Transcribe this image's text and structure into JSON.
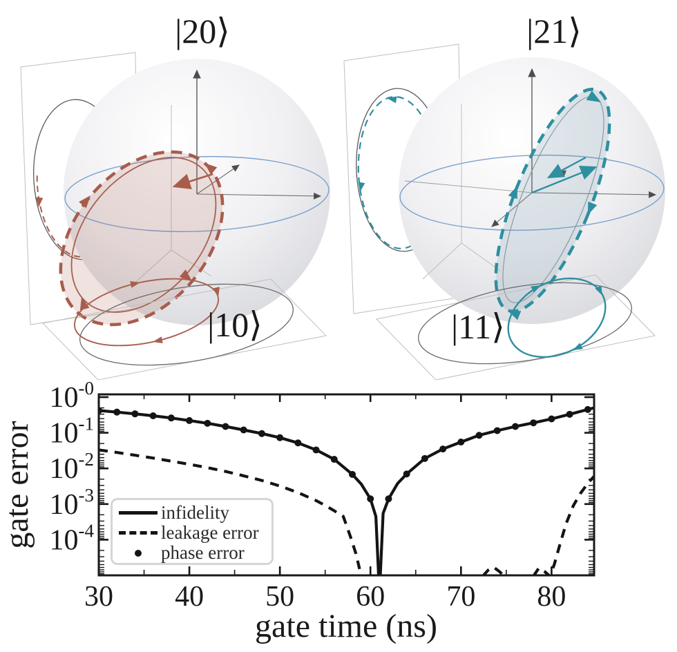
{
  "figure": {
    "bloch_left": {
      "top_label": "|20⟩",
      "bottom_label": "|10⟩",
      "trajectory_color": "#a85c4c",
      "trajectory_fill": "rgba(168,92,76,0.18)"
    },
    "bloch_right": {
      "top_label": "|21⟩",
      "bottom_label": "|11⟩",
      "trajectory_color": "#2e8fa0",
      "trajectory_fill": "rgba(115,150,168,0.20)"
    },
    "equator_color": "#7aa1cc",
    "sphere_color": "#d7d8dc",
    "axis_color": "#4d4d4d"
  },
  "chart_data": {
    "type": "line",
    "title": "",
    "xlabel": "gate time (ns)",
    "ylabel": "gate error",
    "xlim": [
      30,
      84.7
    ],
    "ylog": true,
    "ylim": [
      1e-05,
      1.12
    ],
    "grid": false,
    "xticks": [
      30,
      40,
      50,
      60,
      70,
      80
    ],
    "xtick_minor_step": 5,
    "yticks": [
      {
        "base": "10",
        "sup": "-0"
      },
      {
        "base": "10",
        "sup": "-1"
      },
      {
        "base": "10",
        "sup": "-2"
      },
      {
        "base": "10",
        "sup": "-3"
      },
      {
        "base": "10",
        "sup": "-4"
      }
    ],
    "legend": {
      "position": "lower left",
      "entries": [
        {
          "line": "solid",
          "label": "infidelity"
        },
        {
          "line": "dashed",
          "label": "leakage error"
        },
        {
          "line": "dot",
          "label": "phase error"
        }
      ]
    },
    "line_color": "#141414",
    "series": [
      {
        "name": "infidelity",
        "style": "solid",
        "x": [
          30,
          32,
          34,
          36,
          38,
          40,
          42,
          44,
          46,
          48,
          50,
          52,
          54,
          56,
          58,
          59,
          60,
          60.6,
          61,
          61.4,
          62,
          63,
          64,
          66,
          68,
          70,
          72,
          74,
          76,
          78,
          80,
          82,
          84,
          84.7
        ],
        "y": [
          0.42,
          0.38,
          0.34,
          0.3,
          0.26,
          0.22,
          0.185,
          0.15,
          0.12,
          0.095,
          0.073,
          0.052,
          0.033,
          0.018,
          0.0068,
          0.0036,
          0.0014,
          0.00045,
          3e-06,
          0.00055,
          0.0014,
          0.0038,
          0.007,
          0.019,
          0.035,
          0.055,
          0.085,
          0.115,
          0.15,
          0.19,
          0.245,
          0.33,
          0.45,
          0.5
        ]
      },
      {
        "name": "leakage error",
        "style": "dashed",
        "segments": [
          {
            "x": [
              30,
              32,
              34,
              36,
              38,
              40,
              42,
              44,
              46,
              48,
              50,
              52,
              54,
              55,
              56,
              57,
              57.8,
              58.4,
              58.8
            ],
            "y": [
              0.033,
              0.028,
              0.0235,
              0.0195,
              0.016,
              0.013,
              0.0105,
              0.0082,
              0.0062,
              0.0046,
              0.0032,
              0.0021,
              0.00125,
              0.00092,
              0.00065,
              0.00045,
              0.00012,
              4e-05,
              1.5e-05
            ]
          },
          {
            "x": [
              72.4,
              73.0,
              73.6,
              74.2,
              74.8
            ],
            "y": [
              9.5e-06,
              1.4e-05,
              1.7e-05,
              1.3e-05,
              9.5e-06
            ]
          },
          {
            "x": [
              78.0,
              78.6,
              79.2,
              79.8,
              80.3,
              80.9,
              81.6,
              82.4,
              83.2,
              84.0,
              84.7
            ],
            "y": [
              9.5e-06,
              1.6e-05,
              1.3e-05,
              9.5e-06,
              2e-05,
              7e-05,
              0.00028,
              0.0009,
              0.002,
              0.0038,
              0.006
            ]
          }
        ]
      },
      {
        "name": "phase error",
        "style": "dots",
        "x": [
          30,
          32,
          34,
          36,
          38,
          40,
          42,
          44,
          46,
          48,
          50,
          52,
          54,
          56,
          58,
          60,
          62,
          64,
          66,
          68,
          70,
          72,
          74,
          76,
          78,
          80,
          82,
          84
        ],
        "y": [
          0.42,
          0.38,
          0.34,
          0.3,
          0.26,
          0.22,
          0.185,
          0.15,
          0.12,
          0.095,
          0.073,
          0.052,
          0.033,
          0.018,
          0.0068,
          0.0014,
          0.0014,
          0.007,
          0.019,
          0.035,
          0.055,
          0.085,
          0.115,
          0.15,
          0.19,
          0.245,
          0.33,
          0.45
        ]
      }
    ]
  }
}
